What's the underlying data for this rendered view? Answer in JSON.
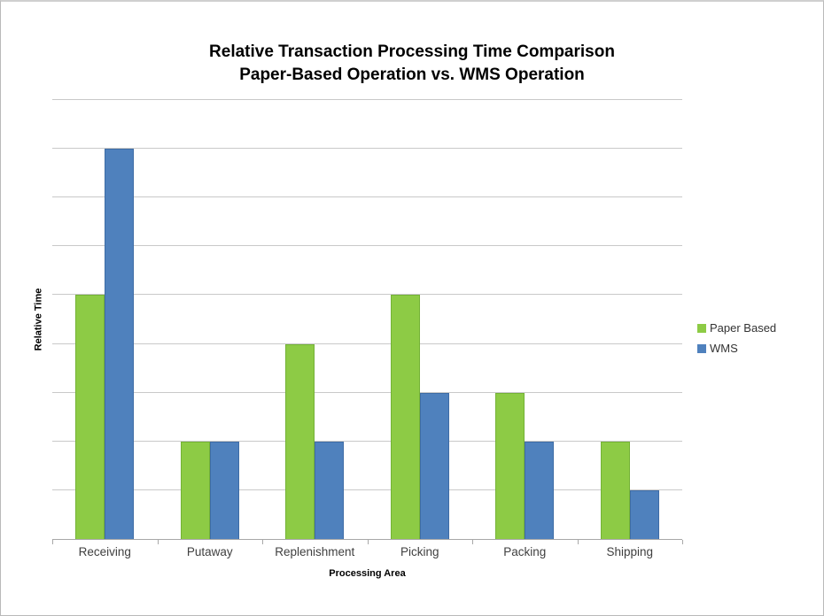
{
  "title_line1": "Relative Transaction Processing Time Comparison",
  "title_line2": "Paper-Based Operation vs. WMS Operation",
  "chart_data": {
    "type": "bar",
    "title": "Relative Transaction Processing Time Comparison Paper-Based Operation vs. WMS Operation",
    "xlabel": "Processing Area",
    "ylabel": "Relative Time",
    "categories": [
      "Receiving",
      "Putaway",
      "Replenishment",
      "Picking",
      "Packing",
      "Shipping"
    ],
    "series": [
      {
        "name": "Paper Based",
        "color": "#8dcb45",
        "border_color": "#74b236",
        "values": [
          5,
          2,
          4,
          5,
          3,
          2
        ]
      },
      {
        "name": "WMS",
        "color": "#4f81bd",
        "border_color": "#3e6ca5",
        "values": [
          8,
          2,
          2,
          3,
          2,
          1
        ]
      }
    ],
    "ylim": [
      0,
      9
    ],
    "gridline_count": 9,
    "y_tick_labels_visible": false,
    "grid": "horizontal",
    "legend_position": "right",
    "gridline_color": "#c9c9c9",
    "axis_color": "#a8a8a8"
  }
}
